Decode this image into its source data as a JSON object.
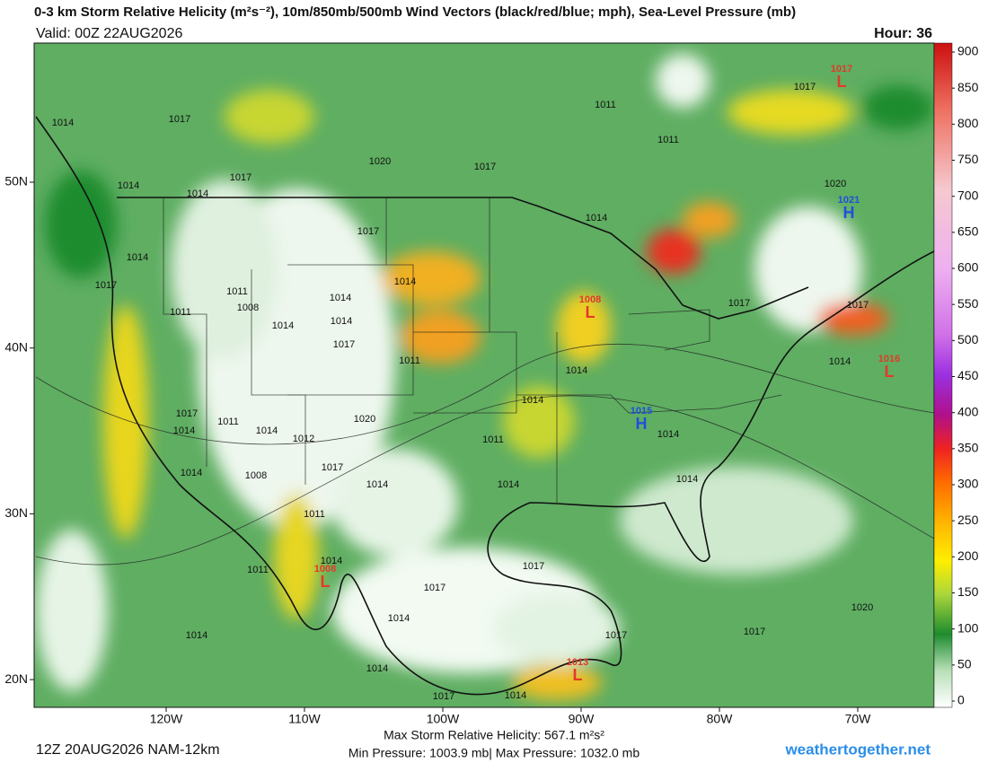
{
  "header": {
    "title": "0-3 km Storm Relative Helicity (m²s⁻²), 10m/850mb/500mb Wind Vectors (black/red/blue; mph), Sea-Level Pressure (mb)",
    "valid": "Valid: 00Z 22AUG2026",
    "hour": "Hour: 36"
  },
  "map": {
    "lat_ticks": [
      {
        "value": 50,
        "label": "50N"
      },
      {
        "value": 40,
        "label": "40N"
      },
      {
        "value": 30,
        "label": "30N"
      },
      {
        "value": 20,
        "label": "20N"
      }
    ],
    "lon_ticks": [
      {
        "value": -120,
        "label": "120W"
      },
      {
        "value": -110,
        "label": "110W"
      },
      {
        "value": -100,
        "label": "100W"
      },
      {
        "value": -90,
        "label": "90W"
      },
      {
        "value": -80,
        "label": "80W"
      },
      {
        "value": -70,
        "label": "70W"
      }
    ],
    "pressure_centers": [
      {
        "value": 1017,
        "letter": "L"
      },
      {
        "value": 1021,
        "letter": "H"
      },
      {
        "value": 1016,
        "letter": "L"
      },
      {
        "value": 1015,
        "letter": "H"
      },
      {
        "value": 1008,
        "letter": "L"
      },
      {
        "value": 1008,
        "letter": "L"
      },
      {
        "value": 1013,
        "letter": "L"
      }
    ],
    "isobar_labels": [
      1014,
      1017,
      1017,
      1020,
      1017,
      1011,
      1011,
      1017,
      1014,
      1014,
      1017,
      1014,
      1020,
      1014,
      1017,
      1011,
      1008,
      1011,
      1014,
      1014,
      1014,
      1017,
      1014,
      1011,
      1014,
      1014,
      1017,
      1017,
      1014,
      1017,
      1014,
      1011,
      1014,
      1020,
      1012,
      1011,
      1014,
      1017,
      1014,
      1008,
      1014,
      1014,
      1014,
      1011,
      1014,
      1011,
      1017,
      1017,
      1014,
      1020,
      1014,
      1017,
      1017,
      1014,
      1017,
      1014
    ]
  },
  "colorbar": {
    "clim": [
      0,
      900
    ],
    "ticks": [
      0,
      50,
      100,
      150,
      200,
      250,
      300,
      350,
      400,
      450,
      500,
      550,
      600,
      650,
      700,
      750,
      800,
      850,
      900
    ]
  },
  "footer": {
    "run": "12Z 20AUG2026 NAM-12km",
    "max_srh": "Max Storm Relative Helicity: 567.1 m²s²",
    "pressure_range": "Min Pressure: 1003.9 mb| Max Pressure: 1032.0 mb",
    "site": "weathertogether.net"
  }
}
